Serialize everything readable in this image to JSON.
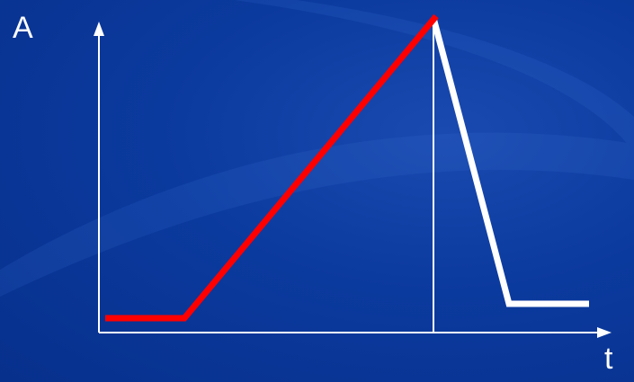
{
  "diagram": {
    "y_axis_label": "A",
    "x_axis_label": "t"
  },
  "colors": {
    "background": "#0a3699",
    "axes": "#ffffff",
    "rise_curve": "#ff0000",
    "fall_curve": "#ffffff"
  }
}
